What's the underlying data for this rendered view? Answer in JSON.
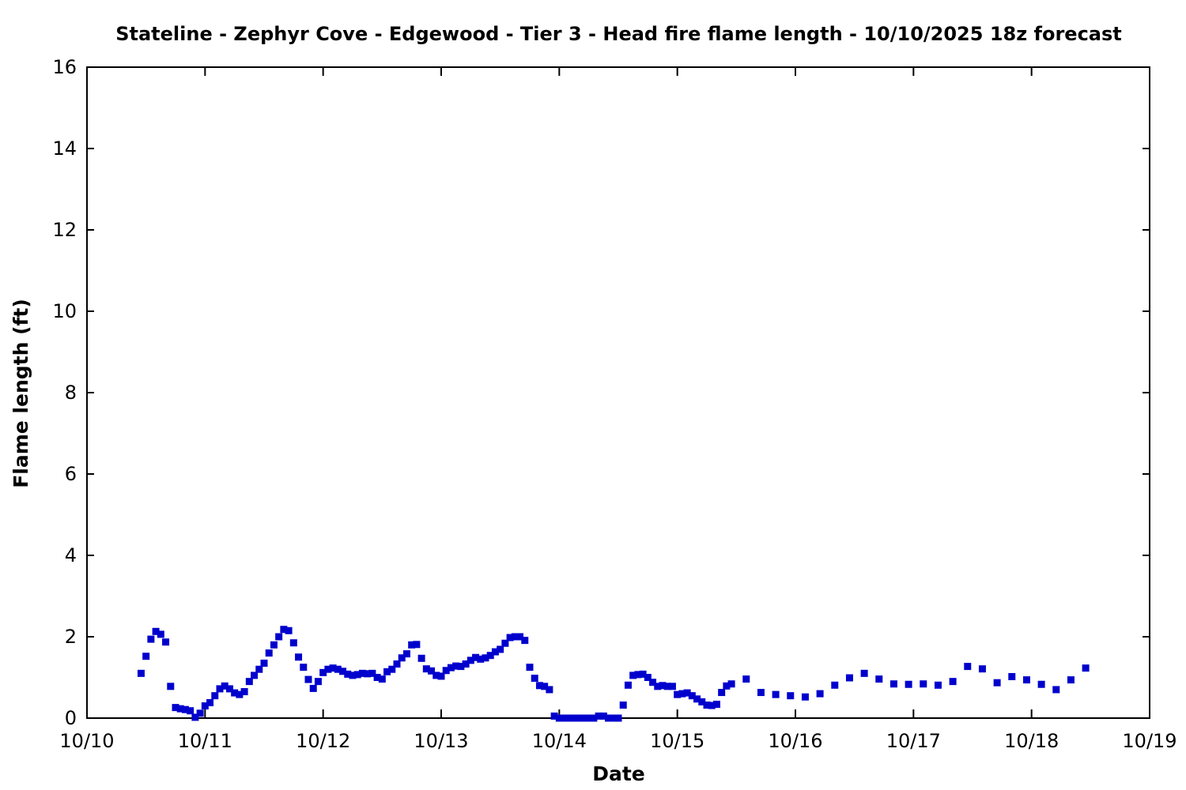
{
  "chart_data": {
    "type": "scatter",
    "title": "Stateline - Zephyr Cove - Edgewood - Tier 3 - Head fire flame length - 10/10/2025 18z forecast",
    "xlabel": "Date",
    "ylabel": "Flame length (ft)",
    "x_tick_labels": [
      "10/10",
      "10/11",
      "10/12",
      "10/13",
      "10/14",
      "10/15",
      "10/16",
      "10/17",
      "10/18",
      "10/19"
    ],
    "y_tick_labels": [
      "0",
      "2",
      "4",
      "6",
      "8",
      "10",
      "12",
      "14",
      "16"
    ],
    "xlim_hours": [
      0,
      216
    ],
    "ylim": [
      0,
      16
    ],
    "grid": false,
    "legend": null,
    "marker": "filled-square",
    "marker_color": "#0000cd",
    "x_unit": "hours since 10/10/2025 00:00",
    "y_unit": "ft",
    "points": [
      [
        11,
        1.1
      ],
      [
        12,
        1.52
      ],
      [
        13,
        1.94
      ],
      [
        14,
        2.13
      ],
      [
        15,
        2.06
      ],
      [
        16,
        1.87
      ],
      [
        17,
        0.78
      ],
      [
        18,
        0.26
      ],
      [
        19,
        0.23
      ],
      [
        20,
        0.21
      ],
      [
        21,
        0.18
      ],
      [
        22,
        0.02
      ],
      [
        23,
        0.12
      ],
      [
        24,
        0.3
      ],
      [
        25,
        0.38
      ],
      [
        26,
        0.55
      ],
      [
        27,
        0.72
      ],
      [
        28,
        0.79
      ],
      [
        29,
        0.72
      ],
      [
        30,
        0.62
      ],
      [
        31,
        0.58
      ],
      [
        32,
        0.65
      ],
      [
        33,
        0.9
      ],
      [
        34,
        1.05
      ],
      [
        35,
        1.2
      ],
      [
        36,
        1.35
      ],
      [
        37,
        1.6
      ],
      [
        38,
        1.8
      ],
      [
        39,
        2.0
      ],
      [
        40,
        2.18
      ],
      [
        41,
        2.15
      ],
      [
        42,
        1.85
      ],
      [
        43,
        1.5
      ],
      [
        44,
        1.25
      ],
      [
        45,
        0.95
      ],
      [
        46,
        0.73
      ],
      [
        47,
        0.9
      ],
      [
        48,
        1.12
      ],
      [
        49,
        1.2
      ],
      [
        50,
        1.23
      ],
      [
        51,
        1.2
      ],
      [
        52,
        1.15
      ],
      [
        53,
        1.08
      ],
      [
        54,
        1.05
      ],
      [
        55,
        1.07
      ],
      [
        56,
        1.1
      ],
      [
        57,
        1.09
      ],
      [
        58,
        1.1
      ],
      [
        59,
        1.0
      ],
      [
        60,
        0.96
      ],
      [
        61,
        1.14
      ],
      [
        62,
        1.2
      ],
      [
        63,
        1.33
      ],
      [
        64,
        1.48
      ],
      [
        65,
        1.58
      ],
      [
        66,
        1.8
      ],
      [
        67,
        1.81
      ],
      [
        68,
        1.47
      ],
      [
        69,
        1.21
      ],
      [
        70,
        1.16
      ],
      [
        71,
        1.05
      ],
      [
        72,
        1.03
      ],
      [
        73,
        1.17
      ],
      [
        74,
        1.24
      ],
      [
        75,
        1.28
      ],
      [
        76,
        1.27
      ],
      [
        77,
        1.33
      ],
      [
        78,
        1.42
      ],
      [
        79,
        1.49
      ],
      [
        80,
        1.45
      ],
      [
        81,
        1.48
      ],
      [
        82,
        1.54
      ],
      [
        83,
        1.63
      ],
      [
        84,
        1.69
      ],
      [
        85,
        1.84
      ],
      [
        86,
        1.98
      ],
      [
        87,
        2.0
      ],
      [
        88,
        2.0
      ],
      [
        89,
        1.91
      ],
      [
        90,
        1.25
      ],
      [
        91,
        0.98
      ],
      [
        92,
        0.8
      ],
      [
        93,
        0.78
      ],
      [
        94,
        0.7
      ],
      [
        95,
        0.05
      ],
      [
        96,
        0.0
      ],
      [
        97,
        0.0
      ],
      [
        98,
        0.0
      ],
      [
        99,
        0.0
      ],
      [
        100,
        0.0
      ],
      [
        101,
        0.0
      ],
      [
        102,
        0.0
      ],
      [
        103,
        0.0
      ],
      [
        104,
        0.05
      ],
      [
        105,
        0.05
      ],
      [
        106,
        0.0
      ],
      [
        107,
        0.0
      ],
      [
        108,
        0.0
      ],
      [
        109,
        0.32
      ],
      [
        110,
        0.81
      ],
      [
        111,
        1.05
      ],
      [
        112,
        1.07
      ],
      [
        113,
        1.08
      ],
      [
        114,
        1.0
      ],
      [
        115,
        0.88
      ],
      [
        116,
        0.78
      ],
      [
        117,
        0.8
      ],
      [
        118,
        0.78
      ],
      [
        119,
        0.78
      ],
      [
        120,
        0.58
      ],
      [
        121,
        0.6
      ],
      [
        122,
        0.62
      ],
      [
        123,
        0.55
      ],
      [
        124,
        0.47
      ],
      [
        125,
        0.4
      ],
      [
        126,
        0.32
      ],
      [
        127,
        0.31
      ],
      [
        128,
        0.34
      ],
      [
        129,
        0.63
      ],
      [
        130,
        0.79
      ],
      [
        131,
        0.84
      ],
      [
        134,
        0.96
      ],
      [
        137,
        0.63
      ],
      [
        140,
        0.58
      ],
      [
        143,
        0.55
      ],
      [
        146,
        0.52
      ],
      [
        149,
        0.6
      ],
      [
        152,
        0.81
      ],
      [
        155,
        0.99
      ],
      [
        158,
        1.1
      ],
      [
        161,
        0.96
      ],
      [
        164,
        0.84
      ],
      [
        167,
        0.83
      ],
      [
        170,
        0.84
      ],
      [
        173,
        0.81
      ],
      [
        176,
        0.9
      ],
      [
        179,
        1.27
      ],
      [
        182,
        1.21
      ],
      [
        185,
        0.87
      ],
      [
        188,
        1.02
      ],
      [
        191,
        0.94
      ],
      [
        194,
        0.83
      ],
      [
        197,
        0.7
      ],
      [
        200,
        0.94
      ],
      [
        203,
        1.23
      ]
    ]
  }
}
